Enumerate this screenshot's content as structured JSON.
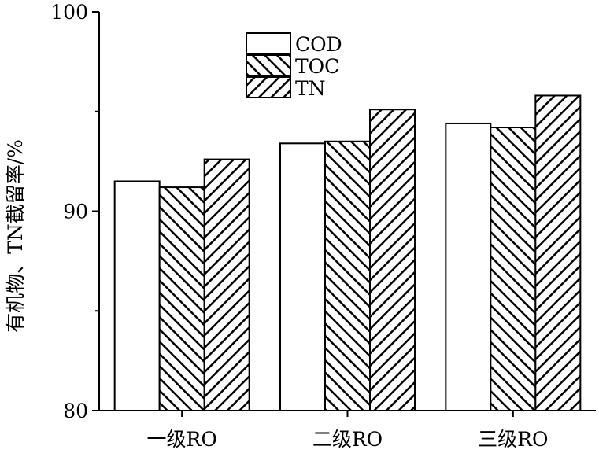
{
  "chart_data": {
    "type": "bar",
    "categories": [
      "一级RO",
      "二级RO",
      "三级RO"
    ],
    "series": [
      {
        "name": "COD",
        "values": [
          91.5,
          93.4,
          94.4
        ],
        "pattern": "solid-white"
      },
      {
        "name": "TOC",
        "values": [
          91.2,
          93.5,
          94.2
        ],
        "pattern": "hatch-forward"
      },
      {
        "name": "TN",
        "values": [
          92.6,
          95.1,
          95.8
        ],
        "pattern": "hatch-back"
      }
    ],
    "ylabel": "有机物、TN截留率/%",
    "xlabel": "",
    "ylim": [
      80,
      100
    ],
    "yticks": [
      80,
      90,
      100
    ],
    "grid": false,
    "legend_position": "top-center",
    "colors": {
      "stroke": "#000000",
      "fill": "#ffffff"
    }
  }
}
